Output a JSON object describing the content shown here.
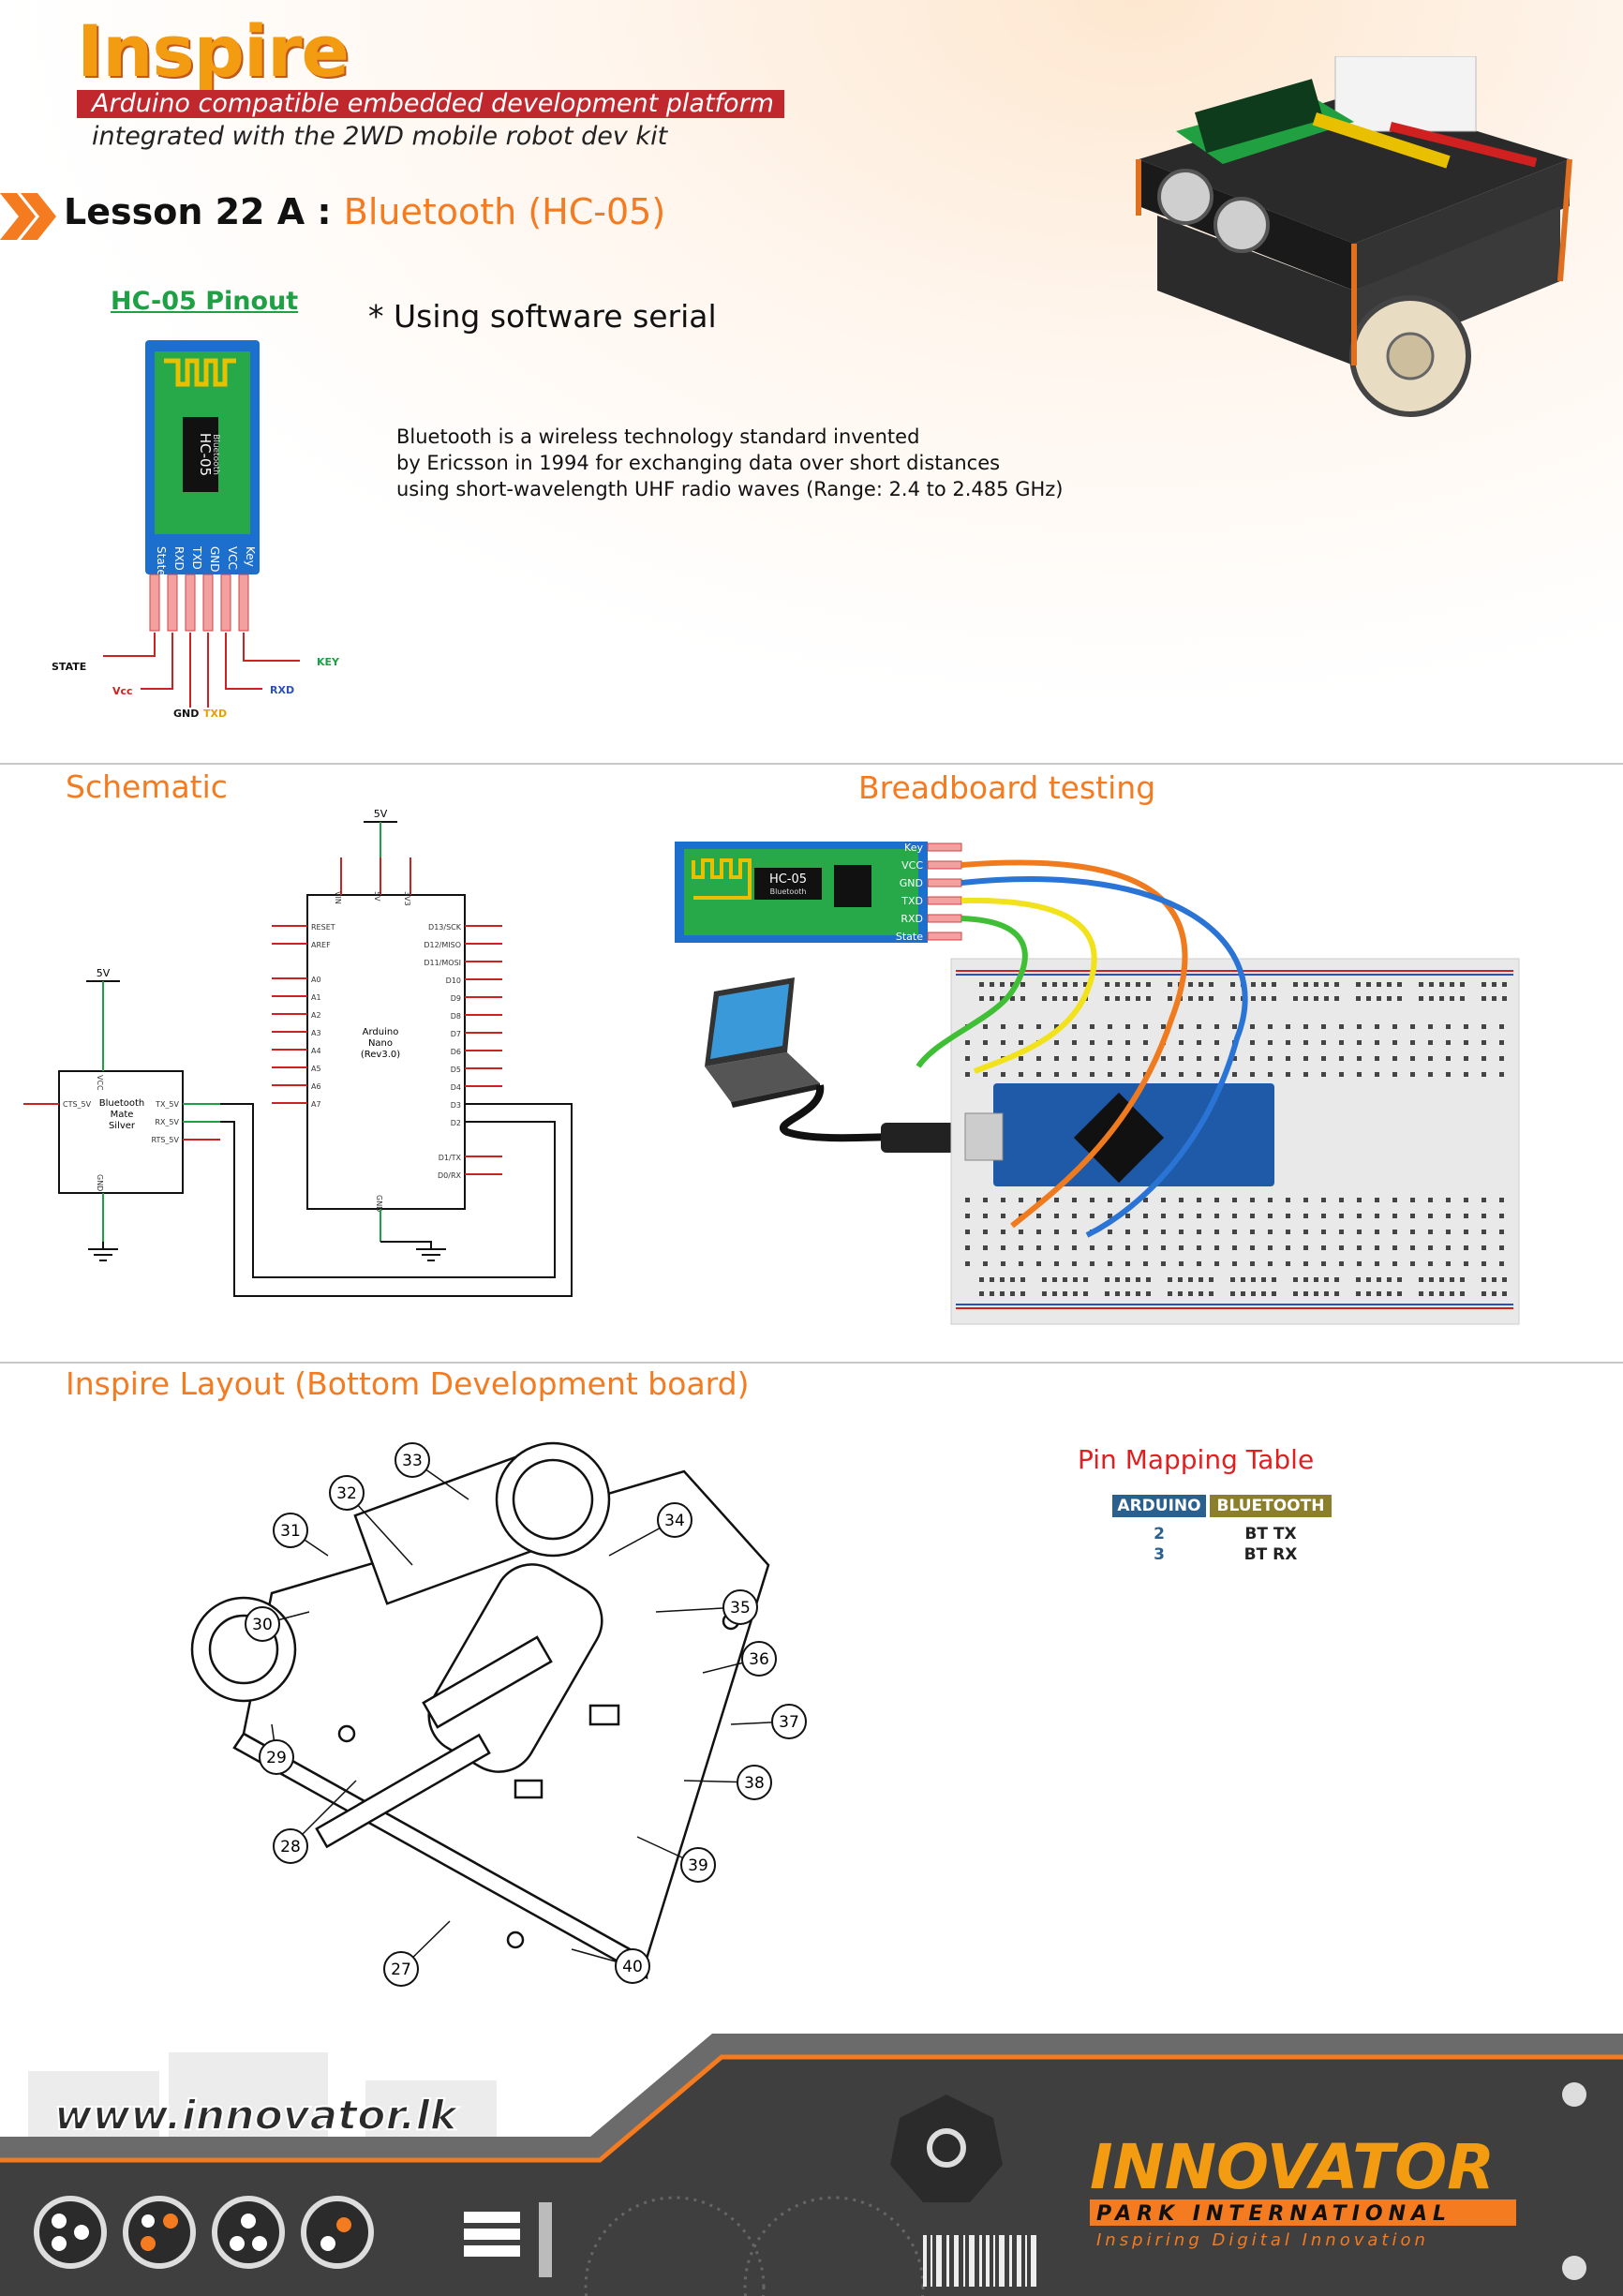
{
  "header": {
    "brand": "Inspire",
    "subtitle_bar": "Arduino compatible embedded development platform",
    "subtitle_line": "integrated with the 2WD mobile robot dev kit",
    "lesson_prefix": "Lesson 22 A :",
    "lesson_topic": "Bluetooth (HC-05)"
  },
  "pinout": {
    "title": "HC-05 Pinout",
    "board_label": "HC-05",
    "board_sub": "Bluetooth",
    "pins_on_board": [
      "State",
      "RXD",
      "TXD",
      "GND",
      "VCC",
      "Key"
    ],
    "labels": {
      "state": "STATE",
      "vcc": "Vcc",
      "gnd": "GND",
      "txd": "TXD",
      "rxd": "RXD",
      "key": "KEY"
    }
  },
  "intro": {
    "note": "* Using software serial",
    "lines": [
      "Bluetooth is a wireless technology standard invented",
      "by Ericsson in 1994 for exchanging data over short distances",
      "using short-wavelength UHF radio waves (Range: 2.4 to 2.485 GHz)"
    ]
  },
  "schematic": {
    "title": "Schematic",
    "supply": "5V",
    "nano_label": [
      "Arduino",
      "Nano",
      "(Rev3.0)"
    ],
    "nano_top_pins": [
      "VIN",
      "5V",
      "3V3"
    ],
    "nano_left_pins": [
      "RESET",
      "AREF",
      "A0",
      "A1",
      "A2",
      "A3",
      "A4",
      "A5",
      "A6",
      "A7"
    ],
    "nano_right_pins": [
      "D13/SCK",
      "D12/MISO",
      "D11/MOSI",
      "D10",
      "D9",
      "D8",
      "D7",
      "D6",
      "D5",
      "D4",
      "D3",
      "D2",
      "D1/TX",
      "D0/RX"
    ],
    "nano_bottom_pin": "GND",
    "mate_label": [
      "Bluetooth",
      "Mate",
      "Silver"
    ],
    "mate_pins_left": [
      "CTS_5V"
    ],
    "mate_pins_right": [
      "TX_5V",
      "RX_5V",
      "RTS_5V"
    ],
    "mate_top_pin": "VCC",
    "mate_bottom_pin": "GND"
  },
  "breadboard": {
    "title": "Breadboard testing",
    "module_label": "HC-05",
    "module_sub": "Bluetooth",
    "module_pins": [
      "Key",
      "VCC",
      "GND",
      "TXD",
      "RXD",
      "State"
    ],
    "wire_colors": {
      "vcc": "#f07a1e",
      "gnd": "#2a74d6",
      "txd": "#f2e21c",
      "rxd": "#3fbf35"
    }
  },
  "layout": {
    "title": "Inspire Layout (Bottom Development board)",
    "callouts": [
      "33",
      "32",
      "34",
      "31",
      "35",
      "30",
      "36",
      "37",
      "29",
      "38",
      "28",
      "39",
      "27",
      "40"
    ]
  },
  "pin_map": {
    "title": "Pin Mapping Table",
    "headers": [
      "ARDUINO",
      "BLUETOOTH"
    ],
    "rows": [
      {
        "arduino": "2",
        "bluetooth": "BT TX"
      },
      {
        "arduino": "3",
        "bluetooth": "BT RX"
      }
    ]
  },
  "footer": {
    "website": "www.innovator.lk",
    "logo_main": "INNOVATOR",
    "logo_sub": "PARK INTERNATIONAL",
    "tagline": "Inspiring Digital Innovation"
  },
  "colors": {
    "accent_orange": "#f47b20",
    "brand_red": "#c0282d",
    "pin_title_green": "#1ea045",
    "table_arduino": "#2a6090",
    "table_bluetooth": "#8c7f2b"
  }
}
